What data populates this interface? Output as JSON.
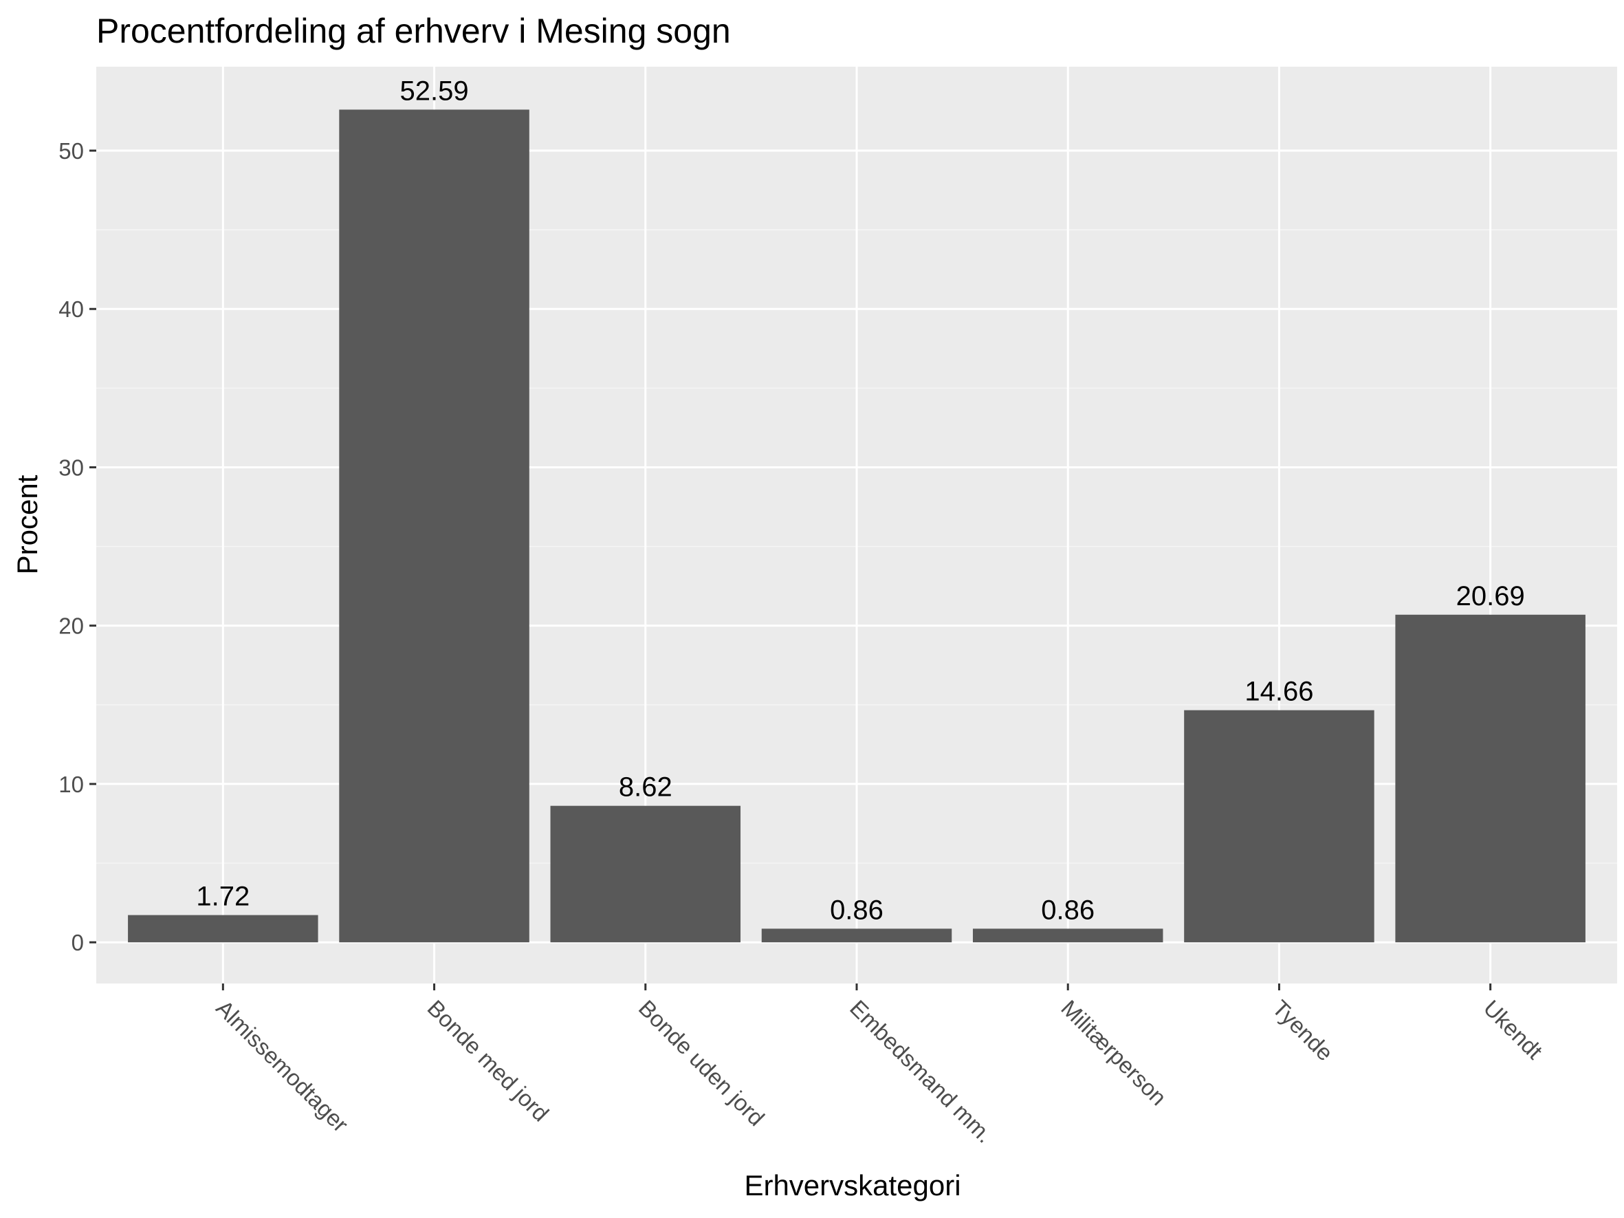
{
  "chart_data": {
    "type": "bar",
    "title": "Procentfordeling af erhverv i Mesing sogn",
    "xlabel": "Erhvervskategori",
    "ylabel": "Procent",
    "categories": [
      "Almissemodtager",
      "Bonde med jord",
      "Bonde uden jord",
      "Embedsmand mm.",
      "Militærperson",
      "Tyende",
      "Ukendt"
    ],
    "values": [
      1.72,
      52.59,
      8.62,
      0.86,
      0.86,
      14.66,
      20.69
    ],
    "value_labels": [
      "1.72",
      "52.59",
      "8.62",
      "0.86",
      "0.86",
      "14.66",
      "20.69"
    ],
    "y_ticks": [
      0,
      10,
      20,
      30,
      40,
      50
    ],
    "y_tick_labels": [
      "0",
      "10",
      "20",
      "30",
      "40",
      "50"
    ],
    "ylim": [
      -2.6,
      55.3
    ],
    "grid": true,
    "legend": "none",
    "colors": {
      "panel_background": "#ebebeb",
      "grid_major": "#ffffff",
      "grid_minor": "#f5f5f5",
      "bar_fill": "#595959",
      "tick": "#333333",
      "tick_label": "#4d4d4d",
      "text": "#000000"
    }
  }
}
